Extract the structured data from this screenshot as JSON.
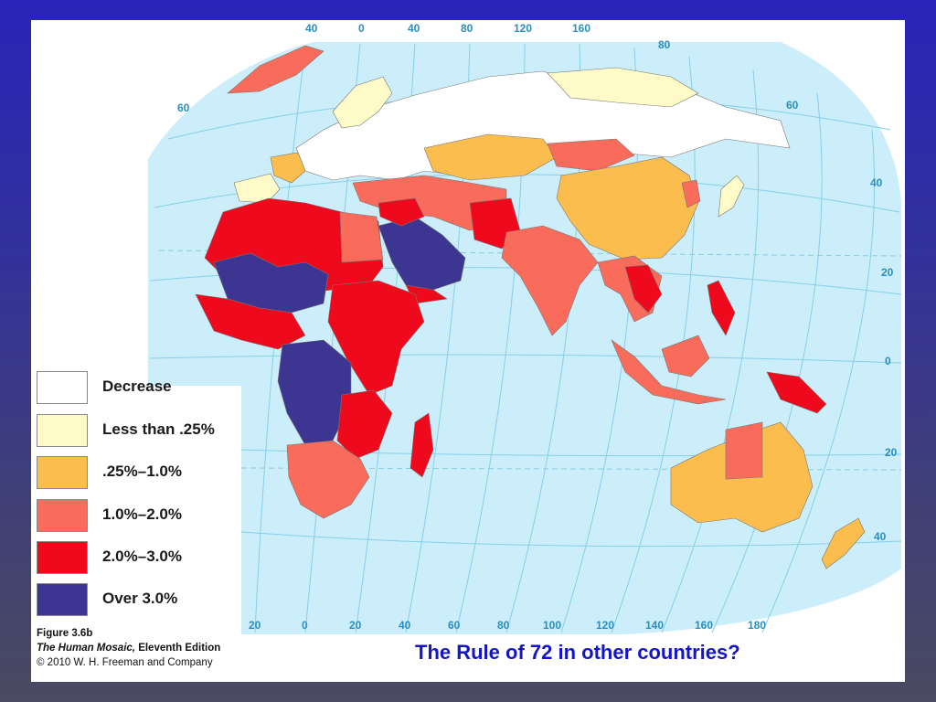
{
  "legend": {
    "items": [
      {
        "label": "Decrease",
        "color": "#ffffff"
      },
      {
        "label": "Less than .25%",
        "color": "#fffbc8"
      },
      {
        "label": ".25%–1.0%",
        "color": "#fbbd4e"
      },
      {
        "label": "1.0%–2.0%",
        "color": "#f96b5a"
      },
      {
        "label": "2.0%–3.0%",
        "color": "#ee0a1c"
      },
      {
        "label": "Over 3.0%",
        "color": "#3c3591"
      }
    ]
  },
  "credit": {
    "figure": "Figure 3.6b",
    "book_title": "The Human Mosaic,",
    "edition": " Eleventh Edition",
    "copyright": "© 2010 W. H. Freeman and Company"
  },
  "caption": "The Rule of 72 in other countries?",
  "map": {
    "ocean_color": "#cbeefa",
    "grid_color": "#7fcbe6",
    "top_longitudes": [
      "40",
      "0",
      "40",
      "80",
      "120",
      "160"
    ],
    "bottom_longitudes": [
      "20",
      "0",
      "20",
      "40",
      "60",
      "80",
      "100",
      "120",
      "140",
      "160",
      "180"
    ],
    "latitudes_right": [
      "80",
      "60",
      "40",
      "20",
      "0",
      "20",
      "40"
    ],
    "latitude_left": "60"
  }
}
